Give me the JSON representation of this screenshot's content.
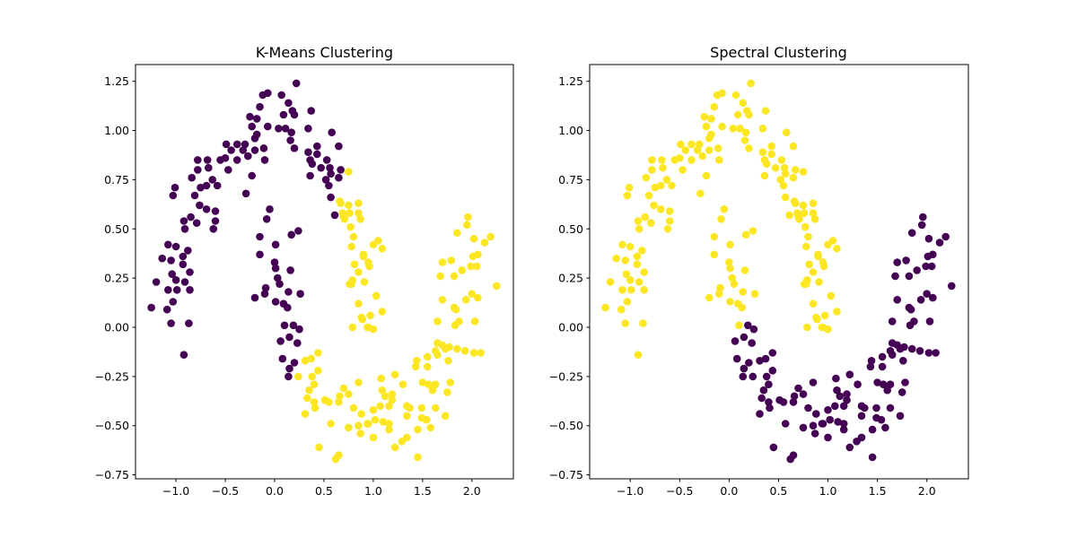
{
  "chart_data": {
    "type": "scatter",
    "colors": {
      "0": "#440154",
      "1": "#fde725"
    },
    "xlim": [
      -1.41,
      2.42
    ],
    "ylim": [
      -0.77,
      1.335
    ],
    "xticks": [
      "-1.0",
      "-0.5",
      "0.0",
      "0.5",
      "1.0",
      "1.5",
      "2.0"
    ],
    "yticks": [
      "-0.75",
      "-0.50",
      "-0.25",
      "0.00",
      "0.25",
      "0.50",
      "0.75",
      "1.00",
      "1.25"
    ],
    "grid": false,
    "columns": [
      "x",
      "y",
      "kmeans_cluster",
      "spectral_cluster"
    ],
    "points": [
      [
        0.22,
        1.24,
        0,
        1
      ],
      [
        -0.12,
        1.18,
        0,
        1
      ],
      [
        -0.07,
        1.19,
        0,
        1
      ],
      [
        0.07,
        1.18,
        0,
        1
      ],
      [
        0.14,
        1.14,
        0,
        1
      ],
      [
        -0.15,
        1.12,
        0,
        1
      ],
      [
        0.18,
        1.1,
        0,
        1
      ],
      [
        0.37,
        1.1,
        0,
        1
      ],
      [
        0.09,
        1.08,
        0,
        1
      ],
      [
        0.2,
        1.08,
        0,
        1
      ],
      [
        -0.25,
        1.07,
        0,
        1
      ],
      [
        -0.18,
        1.06,
        0,
        1
      ],
      [
        -0.23,
        1.02,
        0,
        1
      ],
      [
        -0.07,
        1.02,
        0,
        1
      ],
      [
        0.04,
        1.01,
        0,
        1
      ],
      [
        0.11,
        1.01,
        0,
        1
      ],
      [
        0.17,
        0.99,
        0,
        1
      ],
      [
        0.34,
        1.01,
        0,
        1
      ],
      [
        0.58,
        0.99,
        0,
        1
      ],
      [
        -0.18,
        0.98,
        0,
        1
      ],
      [
        -0.2,
        0.96,
        0,
        1
      ],
      [
        0.16,
        0.95,
        0,
        1
      ],
      [
        -0.49,
        0.93,
        0,
        1
      ],
      [
        -0.38,
        0.93,
        0,
        1
      ],
      [
        -0.3,
        0.93,
        0,
        1
      ],
      [
        -0.11,
        0.91,
        0,
        1
      ],
      [
        0.2,
        0.91,
        0,
        1
      ],
      [
        0.43,
        0.92,
        0,
        1
      ],
      [
        0.65,
        0.92,
        0,
        1
      ],
      [
        -0.44,
        0.9,
        0,
        1
      ],
      [
        -0.32,
        0.9,
        0,
        1
      ],
      [
        -0.2,
        0.9,
        0,
        1
      ],
      [
        0.34,
        0.89,
        0,
        1
      ],
      [
        0.43,
        0.88,
        0,
        1
      ],
      [
        -0.78,
        0.85,
        0,
        1
      ],
      [
        -0.68,
        0.85,
        0,
        1
      ],
      [
        -0.55,
        0.85,
        0,
        1
      ],
      [
        -0.5,
        0.86,
        0,
        1
      ],
      [
        -0.38,
        0.85,
        0,
        1
      ],
      [
        -0.27,
        0.87,
        0,
        1
      ],
      [
        -0.1,
        0.85,
        0,
        1
      ],
      [
        0.36,
        0.85,
        0,
        1
      ],
      [
        0.53,
        0.85,
        0,
        1
      ],
      [
        -0.67,
        0.81,
        0,
        1
      ],
      [
        -0.47,
        0.8,
        0,
        1
      ],
      [
        0.38,
        0.83,
        0,
        1
      ],
      [
        0.47,
        0.81,
        0,
        1
      ],
      [
        0.56,
        0.81,
        0,
        1
      ],
      [
        0.67,
        0.8,
        0,
        1
      ],
      [
        -0.78,
        0.8,
        0,
        1
      ],
      [
        0.57,
        0.78,
        0,
        1
      ],
      [
        -0.84,
        0.76,
        0,
        1
      ],
      [
        -0.23,
        0.77,
        0,
        1
      ],
      [
        0.36,
        0.77,
        0,
        1
      ],
      [
        0.65,
        0.76,
        0,
        1
      ],
      [
        -0.63,
        0.75,
        0,
        1
      ],
      [
        -0.69,
        0.72,
        0,
        1
      ],
      [
        -0.75,
        0.71,
        0,
        1
      ],
      [
        -0.58,
        0.72,
        0,
        1
      ],
      [
        -1.01,
        0.71,
        0,
        1
      ],
      [
        -1.03,
        0.67,
        0,
        1
      ],
      [
        -0.81,
        0.67,
        0,
        1
      ],
      [
        -0.29,
        0.68,
        0,
        1
      ],
      [
        0.52,
        0.75,
        0,
        1
      ],
      [
        0.55,
        0.72,
        0,
        1
      ],
      [
        0.57,
        0.66,
        0,
        1
      ],
      [
        -0.76,
        0.62,
        0,
        1
      ],
      [
        -0.69,
        0.6,
        0,
        1
      ],
      [
        -0.6,
        0.59,
        0,
        1
      ],
      [
        -0.05,
        0.6,
        0,
        1
      ],
      [
        -0.08,
        0.55,
        0,
        1
      ],
      [
        0.61,
        0.57,
        0,
        1
      ],
      [
        -0.92,
        0.54,
        0,
        1
      ],
      [
        -0.85,
        0.56,
        0,
        1
      ],
      [
        -0.79,
        0.53,
        0,
        1
      ],
      [
        -0.6,
        0.54,
        0,
        1
      ],
      [
        -0.91,
        0.5,
        0,
        1
      ],
      [
        -0.62,
        0.5,
        0,
        1
      ],
      [
        0.17,
        0.47,
        0,
        1
      ],
      [
        0.24,
        0.49,
        0,
        1
      ],
      [
        -0.15,
        0.46,
        0,
        1
      ],
      [
        0.01,
        0.42,
        0,
        1
      ],
      [
        -0.15,
        0.37,
        0,
        1
      ],
      [
        -1.08,
        0.42,
        0,
        1
      ],
      [
        -1.0,
        0.41,
        0,
        1
      ],
      [
        -0.88,
        0.39,
        0,
        1
      ],
      [
        -1.14,
        0.35,
        0,
        1
      ],
      [
        -1.05,
        0.34,
        0,
        1
      ],
      [
        -0.93,
        0.36,
        0,
        1
      ],
      [
        -0.93,
        0.32,
        0,
        1
      ],
      [
        -1.04,
        0.27,
        0,
        1
      ],
      [
        -0.86,
        0.28,
        0,
        1
      ],
      [
        0.0,
        0.33,
        0,
        1
      ],
      [
        0.01,
        0.3,
        0,
        1
      ],
      [
        0.16,
        0.29,
        0,
        1
      ],
      [
        -1.2,
        0.23,
        0,
        1
      ],
      [
        -1.0,
        0.24,
        0,
        1
      ],
      [
        -0.91,
        0.23,
        0,
        1
      ],
      [
        -1.08,
        0.19,
        0,
        1
      ],
      [
        -0.99,
        0.19,
        0,
        1
      ],
      [
        -0.86,
        0.19,
        0,
        1
      ],
      [
        -1.03,
        0.13,
        0,
        1
      ],
      [
        -1.25,
        0.1,
        0,
        1
      ],
      [
        -1.09,
        0.09,
        0,
        1
      ],
      [
        -1.05,
        0.02,
        0,
        1
      ],
      [
        -0.87,
        0.02,
        0,
        1
      ],
      [
        -0.92,
        -0.14,
        0,
        1
      ],
      [
        0.03,
        0.25,
        0,
        1
      ],
      [
        0.05,
        0.22,
        0,
        1
      ],
      [
        -0.09,
        0.2,
        0,
        1
      ],
      [
        0.14,
        0.18,
        0,
        1
      ],
      [
        0.26,
        0.17,
        0,
        1
      ],
      [
        -0.1,
        0.17,
        0,
        1
      ],
      [
        -0.2,
        0.15,
        0,
        1
      ],
      [
        0.01,
        0.13,
        0,
        1
      ],
      [
        0.09,
        0.12,
        0,
        1
      ],
      [
        0.13,
        0.1,
        0,
        1
      ],
      [
        0.1,
        0.01,
        0,
        1
      ],
      [
        0.19,
        0.01,
        0,
        0
      ],
      [
        0.25,
        -0.01,
        0,
        0
      ],
      [
        0.06,
        -0.07,
        0,
        0
      ],
      [
        0.15,
        -0.05,
        0,
        0
      ],
      [
        0.23,
        -0.08,
        0,
        0
      ],
      [
        0.08,
        -0.16,
        0,
        0
      ],
      [
        0.2,
        -0.18,
        0,
        0
      ],
      [
        0.15,
        -0.21,
        0,
        0
      ],
      [
        0.14,
        -0.25,
        0,
        0
      ],
      [
        0.75,
        0.79,
        1,
        1
      ],
      [
        0.67,
        0.63,
        1,
        1
      ],
      [
        0.75,
        0.62,
        1,
        1
      ],
      [
        0.85,
        0.63,
        1,
        1
      ],
      [
        0.69,
        0.58,
        1,
        1
      ],
      [
        0.76,
        0.58,
        1,
        1
      ],
      [
        0.85,
        0.58,
        1,
        1
      ],
      [
        0.71,
        0.55,
        1,
        1
      ],
      [
        0.87,
        0.55,
        1,
        1
      ],
      [
        0.77,
        0.51,
        1,
        1
      ],
      [
        0.8,
        0.46,
        1,
        1
      ],
      [
        0.78,
        0.41,
        1,
        1
      ],
      [
        0.9,
        0.37,
        1,
        1
      ],
      [
        0.81,
        0.32,
        1,
        1
      ],
      [
        0.85,
        0.28,
        1,
        1
      ],
      [
        0.78,
        0.22,
        1,
        1
      ],
      [
        0.91,
        0.23,
        1,
        1
      ],
      [
        0.85,
        0.12,
        1,
        1
      ],
      [
        0.88,
        0.05,
        1,
        1
      ],
      [
        0.79,
        0.0,
        1,
        1
      ],
      [
        0.94,
        0.0,
        1,
        1
      ],
      [
        0.66,
        0.64,
        1,
        1
      ],
      [
        0.7,
        0.56,
        1,
        1
      ],
      [
        1.0,
        0.42,
        1,
        1
      ],
      [
        1.05,
        0.44,
        1,
        1
      ],
      [
        1.09,
        0.4,
        1,
        1
      ],
      [
        0.9,
        0.36,
        1,
        1
      ],
      [
        0.95,
        0.33,
        1,
        1
      ],
      [
        0.96,
        0.31,
        1,
        1
      ],
      [
        0.79,
        0.24,
        1,
        1
      ],
      [
        0.76,
        0.22,
        1,
        1
      ],
      [
        1.03,
        0.16,
        1,
        1
      ],
      [
        1.09,
        0.08,
        1,
        1
      ],
      [
        0.97,
        0.06,
        1,
        1
      ],
      [
        0.89,
        0.04,
        1,
        1
      ],
      [
        0.95,
        0.0,
        1,
        1
      ],
      [
        1.0,
        -0.01,
        1,
        1
      ],
      [
        0.44,
        -0.13,
        1,
        0
      ],
      [
        0.31,
        -0.17,
        1,
        0
      ],
      [
        0.37,
        -0.16,
        1,
        0
      ],
      [
        0.24,
        -0.25,
        1,
        0
      ],
      [
        0.44,
        -0.22,
        1,
        0
      ],
      [
        0.38,
        -0.25,
        1,
        0
      ],
      [
        0.4,
        -0.29,
        1,
        0
      ],
      [
        0.35,
        -0.32,
        1,
        0
      ],
      [
        0.33,
        -0.36,
        1,
        0
      ],
      [
        0.4,
        -0.38,
        1,
        0
      ],
      [
        0.41,
        -0.41,
        1,
        0
      ],
      [
        0.51,
        -0.37,
        1,
        0
      ],
      [
        0.55,
        -0.38,
        1,
        0
      ],
      [
        0.31,
        -0.44,
        1,
        0
      ],
      [
        0.85,
        -0.28,
        1,
        0
      ],
      [
        0.7,
        -0.31,
        1,
        0
      ],
      [
        0.75,
        -0.34,
        1,
        0
      ],
      [
        0.66,
        -0.35,
        1,
        0
      ],
      [
        0.65,
        -0.38,
        1,
        0
      ],
      [
        0.8,
        -0.41,
        1,
        0
      ],
      [
        0.88,
        -0.44,
        1,
        0
      ],
      [
        0.57,
        -0.49,
        1,
        0
      ],
      [
        0.75,
        -0.51,
        1,
        0
      ],
      [
        0.85,
        -0.5,
        1,
        0
      ],
      [
        0.87,
        -0.54,
        1,
        0
      ],
      [
        0.94,
        -0.49,
        1,
        0
      ],
      [
        0.45,
        -0.61,
        1,
        0
      ],
      [
        0.65,
        -0.65,
        1,
        0
      ],
      [
        0.62,
        -0.67,
        1,
        0
      ],
      [
        1.96,
        0.56,
        1,
        0
      ],
      [
        1.95,
        0.52,
        1,
        0
      ],
      [
        1.85,
        0.48,
        1,
        0
      ],
      [
        2.19,
        0.46,
        1,
        0
      ],
      [
        2.02,
        0.45,
        1,
        0
      ],
      [
        2.13,
        0.43,
        1,
        0
      ],
      [
        2.06,
        0.37,
        1,
        0
      ],
      [
        2.01,
        0.36,
        1,
        0
      ],
      [
        1.99,
        0.31,
        1,
        0
      ],
      [
        2.05,
        0.31,
        1,
        0
      ],
      [
        1.79,
        0.34,
        1,
        0
      ],
      [
        1.7,
        0.33,
        1,
        0
      ],
      [
        1.9,
        0.29,
        1,
        0
      ],
      [
        1.82,
        0.26,
        1,
        0
      ],
      [
        1.68,
        0.26,
        1,
        0
      ],
      [
        2.25,
        0.21,
        1,
        0
      ],
      [
        2.0,
        0.17,
        1,
        0
      ],
      [
        2.06,
        0.15,
        1,
        0
      ],
      [
        1.94,
        0.14,
        1,
        0
      ],
      [
        1.7,
        0.14,
        1,
        0
      ],
      [
        1.82,
        0.1,
        1,
        0
      ],
      [
        1.84,
        0.09,
        1,
        0
      ],
      [
        1.65,
        0.03,
        1,
        0
      ],
      [
        1.87,
        0.03,
        1,
        0
      ],
      [
        1.83,
        0.01,
        1,
        0
      ],
      [
        2.03,
        0.03,
        1,
        0
      ],
      [
        1.65,
        -0.08,
        1,
        0
      ],
      [
        1.7,
        -0.09,
        1,
        0
      ],
      [
        1.77,
        -0.1,
        1,
        0
      ],
      [
        1.73,
        -0.11,
        1,
        0
      ],
      [
        1.85,
        -0.11,
        1,
        0
      ],
      [
        1.93,
        -0.12,
        1,
        0
      ],
      [
        2.02,
        -0.13,
        1,
        0
      ],
      [
        2.09,
        -0.13,
        1,
        0
      ],
      [
        1.63,
        -0.12,
        1,
        0
      ],
      [
        1.65,
        -0.14,
        1,
        0
      ],
      [
        1.55,
        -0.15,
        1,
        0
      ],
      [
        1.76,
        -0.17,
        1,
        0
      ],
      [
        1.44,
        -0.17,
        1,
        0
      ],
      [
        1.43,
        -0.2,
        1,
        0
      ],
      [
        1.55,
        -0.2,
        1,
        0
      ],
      [
        1.22,
        -0.24,
        1,
        0
      ],
      [
        1.08,
        -0.26,
        1,
        0
      ],
      [
        1.5,
        -0.28,
        1,
        0
      ],
      [
        1.56,
        -0.29,
        1,
        0
      ],
      [
        1.63,
        -0.29,
        1,
        0
      ],
      [
        1.78,
        -0.28,
        1,
        0
      ],
      [
        1.3,
        -0.29,
        1,
        0
      ],
      [
        1.09,
        -0.32,
        1,
        0
      ],
      [
        1.6,
        -0.32,
        1,
        0
      ],
      [
        1.75,
        -0.33,
        1,
        0
      ],
      [
        1.19,
        -0.34,
        1,
        0
      ],
      [
        1.12,
        -0.35,
        1,
        0
      ],
      [
        1.19,
        -0.37,
        1,
        0
      ],
      [
        1.07,
        -0.4,
        1,
        0
      ],
      [
        1.16,
        -0.4,
        1,
        0
      ],
      [
        1.34,
        -0.4,
        1,
        0
      ],
      [
        1.37,
        -0.41,
        1,
        0
      ],
      [
        1.49,
        -0.41,
        1,
        0
      ],
      [
        1.63,
        -0.41,
        1,
        0
      ],
      [
        1.0,
        -0.42,
        1,
        0
      ],
      [
        1.34,
        -0.45,
        1,
        0
      ],
      [
        1.49,
        -0.46,
        1,
        0
      ],
      [
        1.54,
        -0.47,
        1,
        0
      ],
      [
        1.73,
        -0.45,
        1,
        0
      ],
      [
        0.95,
        -0.49,
        1,
        0
      ],
      [
        1.02,
        -0.47,
        1,
        0
      ],
      [
        1.1,
        -0.48,
        1,
        0
      ],
      [
        1.16,
        -0.49,
        1,
        0
      ],
      [
        1.16,
        -0.52,
        1,
        0
      ],
      [
        1.45,
        -0.52,
        1,
        0
      ],
      [
        1.58,
        -0.51,
        1,
        0
      ],
      [
        1.0,
        -0.56,
        1,
        0
      ],
      [
        1.34,
        -0.56,
        1,
        0
      ],
      [
        1.29,
        -0.58,
        1,
        0
      ],
      [
        1.22,
        -0.61,
        1,
        0
      ],
      [
        1.45,
        -0.66,
        1,
        0
      ]
    ],
    "panels": [
      {
        "title": "K-Means Clustering",
        "label_field": "kmeans_cluster"
      },
      {
        "title": "Spectral Clustering",
        "label_field": "spectral_cluster"
      }
    ]
  }
}
